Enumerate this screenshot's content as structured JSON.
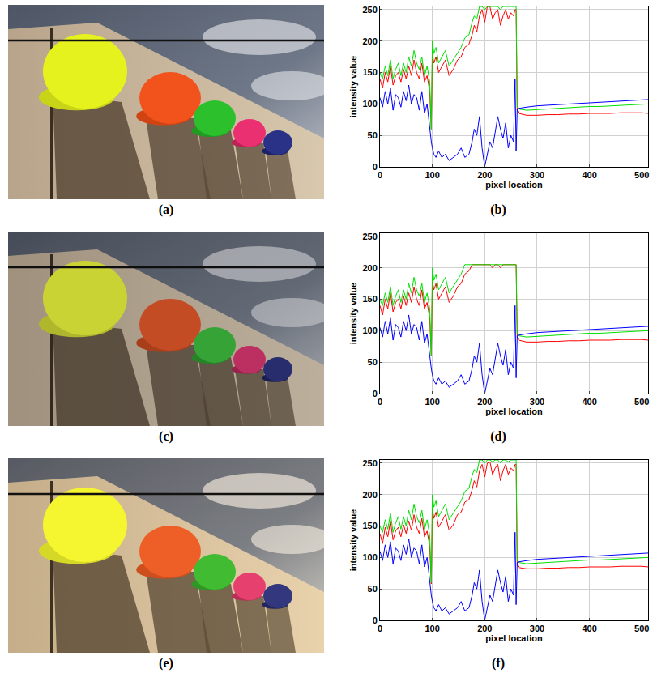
{
  "figure": {
    "panel_labels": [
      "(a)",
      "(c)",
      "(e)"
    ]
  },
  "chart_data": [
    {
      "type": "line",
      "title": "(b)",
      "x_label": "pixel location",
      "y_label": "intensity value",
      "x": [
        0,
        5,
        10,
        15,
        20,
        25,
        30,
        35,
        40,
        45,
        50,
        55,
        60,
        65,
        70,
        75,
        80,
        85,
        90,
        95,
        98,
        100,
        103,
        107,
        112,
        118,
        125,
        132,
        140,
        148,
        155,
        162,
        170,
        176,
        180,
        185,
        190,
        195,
        200,
        205,
        210,
        215,
        220,
        225,
        230,
        235,
        240,
        245,
        250,
        255,
        258,
        260,
        262,
        265,
        280,
        300,
        320,
        340,
        360,
        380,
        400,
        420,
        440,
        460,
        480,
        500,
        512
      ],
      "xlim": [
        0,
        512
      ],
      "xticks": [
        0,
        100,
        200,
        300,
        400,
        500
      ],
      "ylim": [
        0,
        255
      ],
      "yticks": [
        0,
        50,
        100,
        150,
        200,
        250
      ],
      "grid": true,
      "series": [
        {
          "color": "#ff0000",
          "values": [
            140,
            125,
            150,
            135,
            160,
            130,
            145,
            150,
            135,
            155,
            140,
            160,
            145,
            170,
            150,
            140,
            165,
            135,
            145,
            120,
            60,
            180,
            165,
            175,
            150,
            160,
            170,
            145,
            155,
            170,
            175,
            190,
            195,
            210,
            225,
            215,
            240,
            250,
            230,
            255,
            255,
            235,
            245,
            250,
            225,
            240,
            250,
            235,
            245,
            240,
            250,
            250,
            90,
            85,
            82,
            82,
            83,
            83,
            84,
            84,
            85,
            85,
            85,
            86,
            86,
            86,
            85
          ]
        },
        {
          "color": "#00e000",
          "values": [
            150,
            140,
            160,
            145,
            170,
            140,
            155,
            165,
            145,
            165,
            150,
            175,
            160,
            185,
            165,
            155,
            175,
            145,
            160,
            135,
            60,
            200,
            180,
            190,
            165,
            175,
            185,
            160,
            170,
            180,
            190,
            205,
            210,
            230,
            240,
            235,
            255,
            255,
            250,
            255,
            255,
            255,
            255,
            255,
            250,
            255,
            255,
            255,
            255,
            255,
            255,
            255,
            95,
            92,
            90,
            91,
            92,
            93,
            94,
            95,
            96,
            96,
            97,
            98,
            99,
            100,
            100
          ]
        },
        {
          "color": "#0000ff",
          "values": [
            110,
            95,
            120,
            100,
            125,
            90,
            115,
            110,
            95,
            120,
            105,
            130,
            100,
            115,
            110,
            90,
            120,
            85,
            100,
            60,
            40,
            30,
            20,
            15,
            25,
            15,
            20,
            10,
            15,
            20,
            30,
            15,
            20,
            40,
            60,
            50,
            80,
            30,
            0,
            20,
            40,
            30,
            55,
            80,
            60,
            45,
            70,
            30,
            50,
            40,
            140,
            25,
            92,
            93,
            95,
            97,
            98,
            99,
            100,
            101,
            102,
            103,
            104,
            105,
            106,
            107,
            107
          ]
        }
      ]
    },
    {
      "type": "line",
      "title": "(d)",
      "x_label": "pixel location",
      "y_label": "intensity value",
      "x": [
        0,
        5,
        10,
        15,
        20,
        25,
        30,
        35,
        40,
        45,
        50,
        55,
        60,
        65,
        70,
        75,
        80,
        85,
        90,
        95,
        98,
        100,
        103,
        107,
        112,
        118,
        125,
        132,
        140,
        148,
        155,
        162,
        170,
        176,
        180,
        185,
        190,
        195,
        200,
        205,
        210,
        215,
        220,
        225,
        230,
        235,
        240,
        245,
        250,
        255,
        258,
        260,
        262,
        265,
        280,
        300,
        320,
        340,
        360,
        380,
        400,
        420,
        440,
        460,
        480,
        500,
        512
      ],
      "xlim": [
        0,
        512
      ],
      "xticks": [
        0,
        100,
        200,
        300,
        400,
        500
      ],
      "ylim": [
        0,
        255
      ],
      "yticks": [
        0,
        50,
        100,
        150,
        200,
        250
      ],
      "grid": true,
      "series": [
        {
          "color": "#ff0000",
          "values": [
            140,
            125,
            150,
            135,
            160,
            130,
            145,
            150,
            135,
            155,
            140,
            160,
            145,
            170,
            150,
            140,
            165,
            135,
            145,
            120,
            60,
            180,
            165,
            175,
            150,
            160,
            170,
            145,
            155,
            170,
            175,
            190,
            195,
            205,
            205,
            205,
            205,
            205,
            205,
            205,
            205,
            200,
            205,
            205,
            200,
            205,
            205,
            205,
            205,
            205,
            205,
            205,
            90,
            85,
            82,
            82,
            83,
            83,
            84,
            84,
            85,
            85,
            85,
            86,
            86,
            86,
            85
          ]
        },
        {
          "color": "#00e000",
          "values": [
            150,
            140,
            160,
            145,
            170,
            140,
            155,
            165,
            145,
            165,
            150,
            175,
            160,
            185,
            165,
            155,
            175,
            145,
            160,
            135,
            60,
            200,
            180,
            190,
            165,
            175,
            185,
            160,
            170,
            180,
            190,
            205,
            205,
            205,
            205,
            205,
            205,
            205,
            205,
            205,
            205,
            205,
            205,
            205,
            205,
            205,
            205,
            205,
            205,
            205,
            205,
            205,
            95,
            92,
            90,
            91,
            92,
            93,
            94,
            95,
            96,
            96,
            97,
            98,
            99,
            100,
            100
          ]
        },
        {
          "color": "#0000ff",
          "values": [
            105,
            90,
            115,
            95,
            120,
            85,
            110,
            105,
            90,
            115,
            100,
            125,
            95,
            110,
            105,
            85,
            115,
            80,
            95,
            55,
            40,
            30,
            20,
            15,
            25,
            15,
            20,
            10,
            15,
            20,
            30,
            15,
            20,
            40,
            60,
            50,
            80,
            30,
            0,
            20,
            40,
            30,
            55,
            80,
            60,
            45,
            70,
            30,
            50,
            40,
            140,
            25,
            92,
            93,
            95,
            97,
            98,
            99,
            100,
            101,
            102,
            103,
            104,
            105,
            106,
            107,
            107
          ]
        }
      ]
    },
    {
      "type": "line",
      "title": "(f)",
      "x_label": "pixel location",
      "y_label": "intensity value",
      "x": [
        0,
        5,
        10,
        15,
        20,
        25,
        30,
        35,
        40,
        45,
        50,
        55,
        60,
        65,
        70,
        75,
        80,
        85,
        90,
        95,
        98,
        100,
        103,
        107,
        112,
        118,
        125,
        132,
        140,
        148,
        155,
        162,
        170,
        176,
        180,
        185,
        190,
        195,
        200,
        205,
        210,
        215,
        220,
        225,
        230,
        235,
        240,
        245,
        250,
        255,
        258,
        260,
        262,
        265,
        280,
        300,
        320,
        340,
        360,
        380,
        400,
        420,
        440,
        460,
        480,
        500,
        512
      ],
      "xlim": [
        0,
        512
      ],
      "xticks": [
        0,
        100,
        200,
        300,
        400,
        500
      ],
      "ylim": [
        0,
        255
      ],
      "yticks": [
        0,
        50,
        100,
        150,
        200,
        250
      ],
      "grid": true,
      "series": [
        {
          "color": "#ff0000",
          "values": [
            138,
            122,
            148,
            133,
            158,
            128,
            142,
            148,
            133,
            152,
            138,
            158,
            143,
            168,
            148,
            138,
            162,
            133,
            142,
            118,
            58,
            178,
            162,
            172,
            148,
            158,
            168,
            143,
            152,
            168,
            172,
            188,
            192,
            208,
            222,
            212,
            238,
            248,
            228,
            250,
            252,
            232,
            242,
            248,
            222,
            238,
            248,
            232,
            242,
            238,
            248,
            248,
            88,
            84,
            82,
            82,
            83,
            83,
            84,
            84,
            85,
            85,
            85,
            86,
            86,
            86,
            85
          ]
        },
        {
          "color": "#00e000",
          "values": [
            150,
            140,
            160,
            145,
            170,
            140,
            155,
            165,
            145,
            165,
            150,
            175,
            160,
            185,
            165,
            155,
            175,
            145,
            160,
            135,
            60,
            200,
            180,
            190,
            165,
            175,
            185,
            160,
            170,
            180,
            190,
            205,
            210,
            230,
            240,
            235,
            255,
            255,
            250,
            255,
            255,
            252,
            255,
            255,
            250,
            255,
            255,
            252,
            255,
            255,
            255,
            255,
            95,
            92,
            90,
            91,
            92,
            93,
            94,
            95,
            96,
            96,
            97,
            98,
            99,
            100,
            100
          ]
        },
        {
          "color": "#0000ff",
          "values": [
            110,
            95,
            120,
            100,
            125,
            90,
            115,
            110,
            95,
            120,
            105,
            130,
            100,
            115,
            110,
            90,
            120,
            85,
            100,
            60,
            40,
            30,
            20,
            15,
            25,
            15,
            20,
            10,
            15,
            20,
            30,
            15,
            20,
            40,
            60,
            50,
            80,
            30,
            0,
            20,
            40,
            30,
            55,
            80,
            60,
            45,
            70,
            30,
            50,
            40,
            140,
            25,
            92,
            93,
            95,
            97,
            98,
            99,
            100,
            101,
            102,
            103,
            104,
            105,
            106,
            107,
            107
          ]
        }
      ]
    }
  ]
}
